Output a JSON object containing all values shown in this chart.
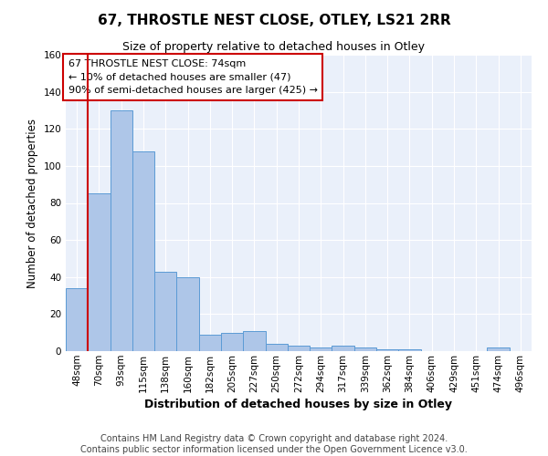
{
  "title": "67, THROSTLE NEST CLOSE, OTLEY, LS21 2RR",
  "subtitle": "Size of property relative to detached houses in Otley",
  "xlabel": "Distribution of detached houses by size in Otley",
  "ylabel": "Number of detached properties",
  "bar_labels": [
    "48sqm",
    "70sqm",
    "93sqm",
    "115sqm",
    "138sqm",
    "160sqm",
    "182sqm",
    "205sqm",
    "227sqm",
    "250sqm",
    "272sqm",
    "294sqm",
    "317sqm",
    "339sqm",
    "362sqm",
    "384sqm",
    "406sqm",
    "429sqm",
    "451sqm",
    "474sqm",
    "496sqm"
  ],
  "bar_values": [
    34,
    85,
    130,
    108,
    43,
    40,
    9,
    10,
    11,
    4,
    3,
    2,
    3,
    2,
    1,
    1,
    0,
    0,
    0,
    2,
    0
  ],
  "bar_color": "#aec6e8",
  "bar_edge_color": "#5b9bd5",
  "vline_x_index": 1,
  "vline_color": "#cc0000",
  "annotation_text": "67 THROSTLE NEST CLOSE: 74sqm\n← 10% of detached houses are smaller (47)\n90% of semi-detached houses are larger (425) →",
  "annotation_box_color": "#ffffff",
  "annotation_box_edge_color": "#cc0000",
  "ylim": [
    0,
    160
  ],
  "yticks": [
    0,
    20,
    40,
    60,
    80,
    100,
    120,
    140,
    160
  ],
  "footer_text": "Contains HM Land Registry data © Crown copyright and database right 2024.\nContains public sector information licensed under the Open Government Licence v3.0.",
  "plot_bg_color": "#eaf0fa",
  "grid_color": "#ffffff",
  "title_fontsize": 11,
  "subtitle_fontsize": 9,
  "annotation_fontsize": 8,
  "footer_fontsize": 7,
  "ylabel_fontsize": 8.5,
  "xlabel_fontsize": 9,
  "tick_fontsize": 7.5
}
